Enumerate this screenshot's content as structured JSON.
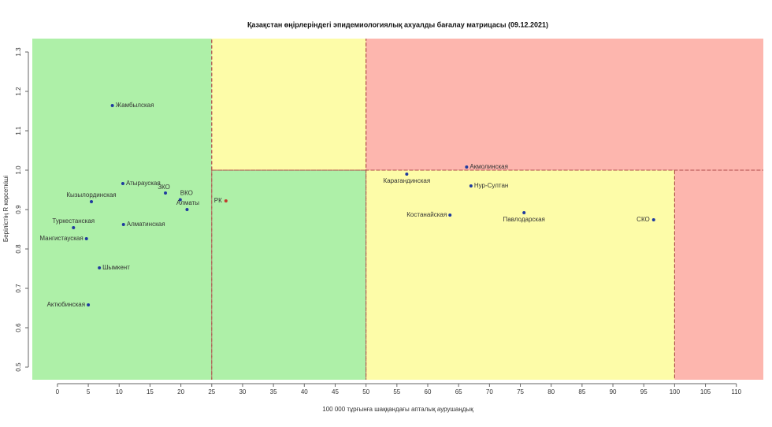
{
  "chart_data": {
    "type": "scatter",
    "title": "Қазақстан өңірлеріндегі эпидемиологиялық ахуалды бағалау матрицасы  (09.12.2021)",
    "x_label": "100 000 тұрғынға шаққандағы апталық аурушаңдық",
    "y_label": "Берілістің R көрсеткіші",
    "labels": [
      "Жамбылская",
      "Атырауская",
      "ЗКО",
      "ВКО",
      "Алматы",
      "РК",
      "Кызылординская",
      "Туркестанская",
      "Алматинская",
      "Мангистауская",
      "Шымкент",
      "Актюбинская",
      "Акмолинская",
      "Карагандинская",
      "Нур-Султан",
      "Костанайская",
      "Павлодарская",
      "СКО"
    ],
    "x": [
      8.9,
      10.6,
      17.5,
      19.9,
      21,
      27.3,
      5.5,
      2.6,
      10.7,
      4.7,
      6.8,
      5,
      66.3,
      56.6,
      67,
      63.6,
      75.6,
      96.6
    ],
    "values": [
      1.164,
      0.966,
      0.942,
      0.925,
      0.9,
      0.922,
      0.92,
      0.854,
      0.862,
      0.826,
      0.752,
      0.658,
      1.008,
      0.99,
      0.96,
      0.886,
      0.892,
      0.874
    ],
    "point_colors": [
      "#1f3a9e",
      "#1f3a9e",
      "#1f3a9e",
      "#1f3a9e",
      "#1f3a9e",
      "#c0392b",
      "#1f3a9e",
      "#1f3a9e",
      "#1f3a9e",
      "#1f3a9e",
      "#1f3a9e",
      "#1f3a9e",
      "#1f3a9e",
      "#1f3a9e",
      "#1f3a9e",
      "#1f3a9e",
      "#1f3a9e",
      "#1f3a9e"
    ],
    "xlim": [
      -4.2,
      114.5
    ],
    "ylim": [
      0.466,
      1.336
    ],
    "xticks": [
      0,
      5,
      10,
      15,
      20,
      25,
      30,
      35,
      40,
      45,
      50,
      55,
      60,
      65,
      70,
      75,
      80,
      85,
      90,
      95,
      100,
      105,
      110
    ],
    "yticks": [
      0.5,
      0.6,
      0.7,
      0.8,
      0.9,
      {
        "value": 1,
        "label": "1.0"
      },
      1.1,
      1.2,
      1.3
    ],
    "zones": [
      {
        "x": [
          null,
          25
        ],
        "y": [
          null,
          null
        ],
        "color": "#aef0a8"
      },
      {
        "x": [
          25,
          50
        ],
        "y": [
          null,
          1
        ],
        "color": "#aef0a8"
      },
      {
        "x": [
          25,
          50
        ],
        "y": [
          1,
          null
        ],
        "color": "#fdfca8"
      },
      {
        "x": [
          50,
          100
        ],
        "y": [
          null,
          1
        ],
        "color": "#fdfca8"
      },
      {
        "x": [
          50,
          null
        ],
        "y": [
          1,
          null
        ],
        "color": "#fdb6ae"
      },
      {
        "x": [
          100,
          null
        ],
        "y": [
          null,
          1
        ],
        "color": "#fdb6ae"
      }
    ]
  }
}
